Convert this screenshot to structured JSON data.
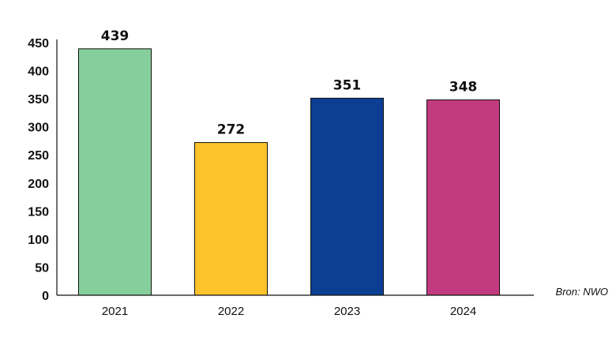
{
  "chart_data": {
    "type": "bar",
    "categories": [
      "2021",
      "2022",
      "2023",
      "2024"
    ],
    "values": [
      439,
      272,
      351,
      348
    ],
    "colors": [
      "#86cf9c",
      "#fcc32a",
      "#0c3f94",
      "#c23a80"
    ],
    "ylim": [
      0,
      450
    ],
    "yticks": [
      0,
      50,
      100,
      150,
      200,
      250,
      300,
      350,
      400,
      450
    ],
    "grid": false,
    "data_labels": true
  },
  "source": "Bron: NWO"
}
